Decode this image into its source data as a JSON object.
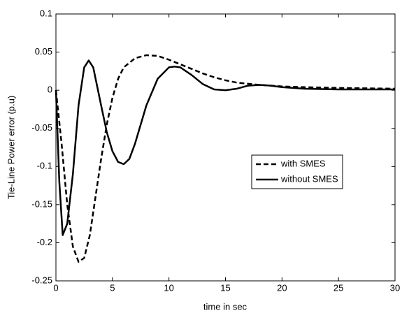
{
  "chart_data": {
    "type": "line",
    "xlabel": "time in sec",
    "ylabel": "Tie-Line Power error (p.u)",
    "xlim": [
      0,
      30
    ],
    "ylim": [
      -0.25,
      0.1
    ],
    "xticks": [
      0,
      5,
      10,
      15,
      20,
      25,
      30
    ],
    "yticks": [
      -0.25,
      -0.2,
      -0.15,
      -0.1,
      -0.05,
      0,
      0.05,
      0.1
    ],
    "legend_position": "right",
    "series": [
      {
        "name": "with SMES",
        "color": "#000000",
        "style": "dashed",
        "x": [
          0,
          0.5,
          1,
          1.5,
          2,
          2.5,
          3,
          3.5,
          4,
          4.5,
          5,
          5.5,
          6,
          7,
          8,
          9,
          10,
          11,
          12,
          13,
          14,
          15,
          16,
          18,
          20,
          22,
          25,
          30
        ],
        "values": [
          0,
          -0.07,
          -0.15,
          -0.205,
          -0.225,
          -0.22,
          -0.19,
          -0.14,
          -0.09,
          -0.045,
          -0.01,
          0.015,
          0.03,
          0.042,
          0.046,
          0.045,
          0.04,
          0.034,
          0.028,
          0.022,
          0.017,
          0.013,
          0.01,
          0.007,
          0.005,
          0.004,
          0.003,
          0.002
        ]
      },
      {
        "name": "without SMES",
        "color": "#000000",
        "style": "solid",
        "x": [
          0,
          0.3,
          0.6,
          1,
          1.5,
          2,
          2.5,
          2.9,
          3.3,
          4,
          4.5,
          5,
          5.5,
          6,
          6.5,
          7,
          8,
          9,
          10,
          10.5,
          11,
          12,
          13,
          14,
          15,
          16,
          17,
          18,
          19,
          20,
          22,
          25,
          30
        ],
        "values": [
          0,
          -0.12,
          -0.19,
          -0.175,
          -0.11,
          -0.02,
          0.03,
          0.039,
          0.03,
          -0.02,
          -0.055,
          -0.08,
          -0.094,
          -0.097,
          -0.09,
          -0.07,
          -0.02,
          0.015,
          0.03,
          0.031,
          0.03,
          0.02,
          0.008,
          0.001,
          0,
          0.002,
          0.006,
          0.007,
          0.006,
          0.004,
          0.002,
          0.001,
          0.001
        ]
      }
    ]
  }
}
